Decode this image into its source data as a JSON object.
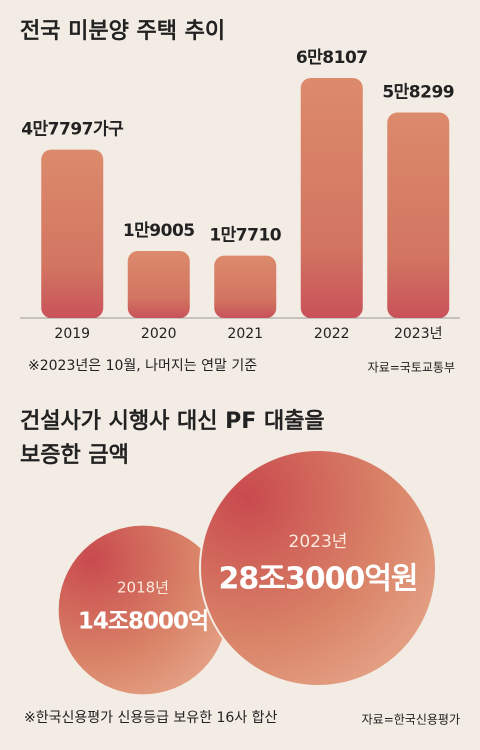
{
  "chart_data": [
    {
      "type": "bar",
      "title": "전국 미분양 주택 추이",
      "categories": [
        "2019",
        "2020",
        "2021",
        "2022",
        "2023년"
      ],
      "values": [
        47797,
        19005,
        17710,
        68107,
        58299
      ],
      "value_labels": [
        "4만7797가구",
        "1만9005",
        "1만7710",
        "6만8107",
        "5만8299"
      ],
      "note": "※2023년은 10월, 나머지는 연말 기준",
      "source": "자료=국토교통부"
    },
    {
      "type": "bubble",
      "title": [
        "건설사가 시행사 대신 PF 대출을",
        "보증한 금액"
      ],
      "categories": [
        "2018년",
        "2023년"
      ],
      "values": [
        148000,
        283000
      ],
      "value_labels": [
        "14조8000억",
        "28조3000억원"
      ],
      "note": "※한국신용평가 신용등급 보유한 16사 합산",
      "source": "자료=한국신용평가"
    }
  ]
}
